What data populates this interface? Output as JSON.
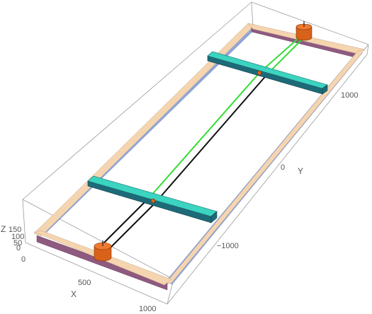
{
  "scene": {
    "axes": {
      "x": {
        "label": "X",
        "ticks": [
          "0",
          "500",
          "1000"
        ]
      },
      "y": {
        "label": "Y",
        "ticks": [
          "1000",
          "0",
          "−1000"
        ]
      },
      "z": {
        "label": "Z",
        "ticks": [
          "150",
          "100",
          "50",
          "0"
        ]
      }
    },
    "colors": {
      "frame_light": "#f5d5b0",
      "frame_blue": "#8fa6d8",
      "frame_purple": "#8e5a80",
      "crossbar_top": "#3bd4c0",
      "crossbar_side": "#1d6a78",
      "cable_green": "#33dd33",
      "cable_black": "#111111",
      "motor_body": "#d8621a",
      "motor_top": "#f07a30",
      "box_line": "#9a9a9a"
    }
  }
}
